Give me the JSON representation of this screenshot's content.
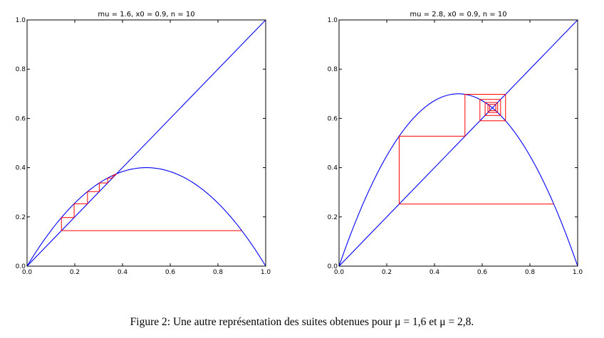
{
  "caption": "Figure 2: Une autre représentation des suites obtenues pour μ = 1,6 et μ = 2,8.",
  "colors": {
    "curve": "#0000ff",
    "diagonal": "#0000ff",
    "cobweb": "#ff0000",
    "axes": "#000000"
  },
  "chart_data": [
    {
      "type": "line",
      "title": "mu = 1.6, x0 = 0.9, n = 10",
      "mu": 1.6,
      "x0": 0.9,
      "n": 10,
      "xlim": [
        0,
        1
      ],
      "ylim": [
        0,
        1
      ],
      "xticks": [
        "0.0",
        "0.2",
        "0.4",
        "0.6",
        "0.8",
        "1.0"
      ],
      "yticks": [
        "0.0",
        "0.2",
        "0.4",
        "0.6",
        "0.8",
        "1.0"
      ],
      "grid": false
    },
    {
      "type": "line",
      "title": "mu = 2.8, x0 = 0.9, n = 10",
      "mu": 2.8,
      "x0": 0.9,
      "n": 10,
      "xlim": [
        0,
        1
      ],
      "ylim": [
        0,
        1
      ],
      "xticks": [
        "0.0",
        "0.2",
        "0.4",
        "0.6",
        "0.8",
        "1.0"
      ],
      "yticks": [
        "0.0",
        "0.2",
        "0.4",
        "0.6",
        "0.8",
        "1.0"
      ],
      "grid": false
    }
  ]
}
